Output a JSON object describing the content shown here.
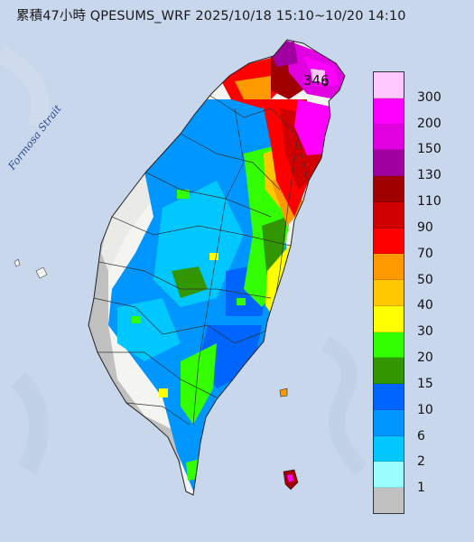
{
  "title": "累積47小時 QPESUMS_WRF 2025/10/18 15:10~10/20 14:10",
  "strait_label": "Formosa Strait",
  "max_value_label": "346",
  "legend": {
    "levels": [
      {
        "label": "300",
        "color": "#ffc8ff"
      },
      {
        "label": "200",
        "color": "#ff00ff"
      },
      {
        "label": "150",
        "color": "#e000e0"
      },
      {
        "label": "130",
        "color": "#a000a0"
      },
      {
        "label": "110",
        "color": "#a00000"
      },
      {
        "label": "90",
        "color": "#d00000"
      },
      {
        "label": "70",
        "color": "#ff0000"
      },
      {
        "label": "50",
        "color": "#ff9900"
      },
      {
        "label": "40",
        "color": "#ffc800"
      },
      {
        "label": "30",
        "color": "#ffff00"
      },
      {
        "label": "20",
        "color": "#33ff00"
      },
      {
        "label": "15",
        "color": "#329600"
      },
      {
        "label": "10",
        "color": "#0064ff"
      },
      {
        "label": "6",
        "color": "#0096ff"
      },
      {
        "label": "2",
        "color": "#00c8ff"
      },
      {
        "label": "1",
        "color": "#9bffff"
      },
      {
        "label": "",
        "color": "#c0c0c0"
      }
    ]
  },
  "colors": {
    "sea": "#c9d7ec",
    "land": "#f4f4f0",
    "no_rain": "#c0c0c0"
  }
}
